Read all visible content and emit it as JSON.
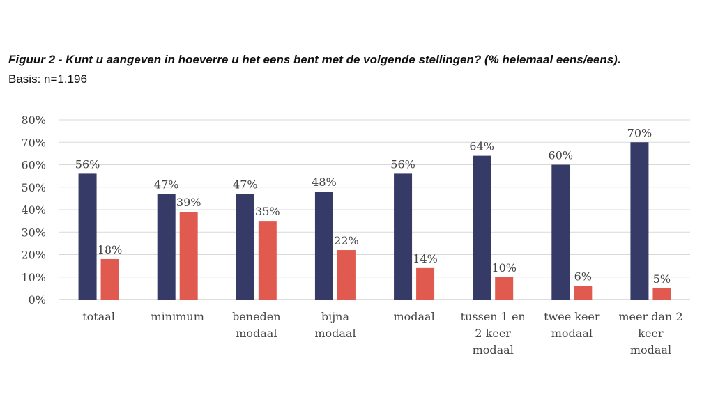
{
  "chart_data": {
    "type": "bar",
    "title": "Figuur 2 - Kunt u aangeven in hoeverre u het eens bent met de volgende stellingen? (% helemaal eens/eens).",
    "subtitle": "Basis: n=1.196",
    "categories": [
      [
        "totaal"
      ],
      [
        "minimum"
      ],
      [
        "beneden",
        "modaal"
      ],
      [
        "bijna",
        "modaal"
      ],
      [
        "modaal"
      ],
      [
        "tussen 1 en",
        "2 keer",
        "modaal"
      ],
      [
        "twee keer",
        "modaal"
      ],
      [
        "meer dan 2",
        "keer",
        "modaal"
      ]
    ],
    "series": [
      {
        "name": "serie 1",
        "color": "#353a66",
        "values": [
          56,
          47,
          47,
          48,
          56,
          64,
          60,
          70
        ],
        "labels": [
          "56%",
          "47%",
          "47%",
          "48%",
          "56%",
          "64%",
          "60%",
          "70%"
        ]
      },
      {
        "name": "serie 2",
        "color": "#e05a50",
        "values": [
          18,
          39,
          35,
          22,
          14,
          10,
          6,
          5
        ],
        "labels": [
          "18%",
          "39%",
          "35%",
          "22%",
          "14%",
          "10%",
          "6%",
          "5%"
        ]
      }
    ],
    "yticks": [
      "0%",
      "10%",
      "20%",
      "30%",
      "40%",
      "50%",
      "60%",
      "70%",
      "80%"
    ],
    "ylim": [
      0,
      80
    ],
    "grid": true,
    "xlabel": "",
    "ylabel": ""
  }
}
